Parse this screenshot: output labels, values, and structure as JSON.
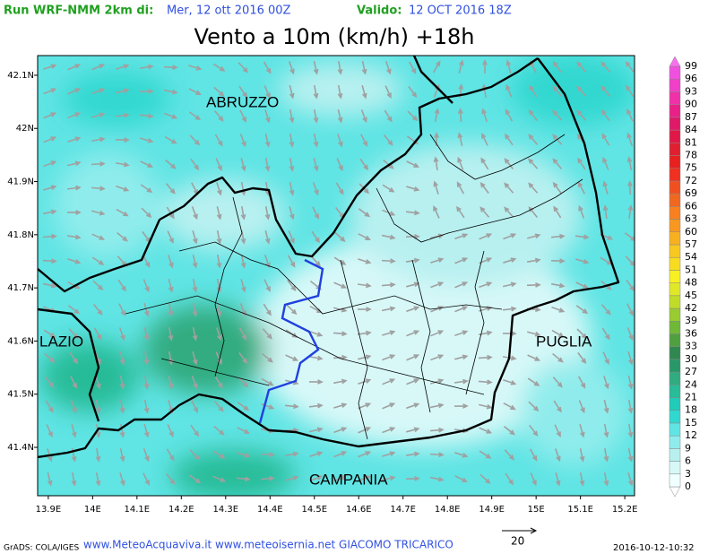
{
  "header": {
    "run_label": "Run WRF-NMM 2km di:",
    "run_date": "Mer, 12 ott 2016 00Z",
    "valid_label": "Valido:",
    "valid_date": "12 OCT 2016 18Z"
  },
  "title": "Vento a 10m (km/h) +18h",
  "map": {
    "lonlim": [
      13.876,
      15.222
    ],
    "latlim": [
      41.309,
      42.137
    ],
    "lon_ticks": [
      {
        "value": 13.9,
        "label": "13.9E"
      },
      {
        "value": 14,
        "label": "14E"
      },
      {
        "value": 14.1,
        "label": "14.1E"
      },
      {
        "value": 14.2,
        "label": "14.2E"
      },
      {
        "value": 14.3,
        "label": "14.3E"
      },
      {
        "value": 14.4,
        "label": "14.4E"
      },
      {
        "value": 14.5,
        "label": "14.5E"
      },
      {
        "value": 14.6,
        "label": "14.6E"
      },
      {
        "value": 14.7,
        "label": "14.7E"
      },
      {
        "value": 14.8,
        "label": "14.8E"
      },
      {
        "value": 14.9,
        "label": "14.9E"
      },
      {
        "value": 15,
        "label": "15E"
      },
      {
        "value": 15.1,
        "label": "15.1E"
      },
      {
        "value": 15.2,
        "label": "15.2E"
      }
    ],
    "lat_ticks": [
      {
        "value": 42.1,
        "label": "42.1N"
      },
      {
        "value": 42,
        "label": "42N"
      },
      {
        "value": 41.9,
        "label": "41.9N"
      },
      {
        "value": 41.8,
        "label": "41.8N"
      },
      {
        "value": 41.7,
        "label": "41.7N"
      },
      {
        "value": 41.6,
        "label": "41.6N"
      },
      {
        "value": 41.5,
        "label": "41.5N"
      },
      {
        "value": 41.4,
        "label": "41.4N"
      }
    ],
    "regions": [
      "ABRUZZO",
      "LAZIO",
      "PUGLIA",
      "CAMPANIA"
    ]
  },
  "colorbar": {
    "levels": [
      0,
      3,
      6,
      9,
      12,
      15,
      18,
      21,
      24,
      27,
      30,
      33,
      36,
      39,
      42,
      45,
      48,
      51,
      54,
      57,
      60,
      63,
      66,
      69,
      72,
      75,
      78,
      81,
      84,
      87,
      90,
      93,
      96,
      99
    ],
    "colors": [
      "#ffffff",
      "#f0ffff",
      "#d8f8f8",
      "#b8f0f0",
      "#90ecec",
      "#60e4e4",
      "#30d8d0",
      "#20ccb8",
      "#28bc98",
      "#30ac80",
      "#289868",
      "#308850",
      "#50a040",
      "#70b838",
      "#98cc30",
      "#c0dc28",
      "#e0e828",
      "#f8f020",
      "#f8dc20",
      "#f8c820",
      "#f8b020",
      "#f89820",
      "#f88020",
      "#f06820",
      "#f05020",
      "#f03020",
      "#e82020",
      "#e02030",
      "#e01848",
      "#e01868",
      "#e82088",
      "#f030a8",
      "#f040c8",
      "#f050e0",
      "#f870f0"
    ]
  },
  "reference_vector": {
    "value": 20
  },
  "footer": {
    "software": "GrADS: COLA/IGES",
    "credits": "www.MeteoAcquaviva.it www.meteoisernia.net GIACOMO TRICARICO",
    "timestamp": "2016-10-12-10:32"
  }
}
